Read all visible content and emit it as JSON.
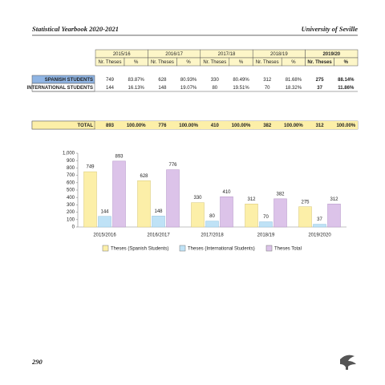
{
  "header": {
    "left": "Statistical Yearbook 2020-2021",
    "right": "University of Seville"
  },
  "table": {
    "years": [
      "2015/16",
      "2016/17",
      "2017/18",
      "2018/19",
      "2019/20"
    ],
    "subheaders": [
      "Nr. Theses",
      "%"
    ],
    "rows": [
      {
        "label": "SPANISH STUDENTS",
        "cells": [
          "749",
          "83.87%",
          "628",
          "80.93%",
          "330",
          "80.49%",
          "312",
          "81.68%",
          "275",
          "88.14%"
        ]
      },
      {
        "label": "INTERNATIONAL STUDENTS",
        "cells": [
          "144",
          "16.13%",
          "148",
          "19.07%",
          "80",
          "19.51%",
          "70",
          "18.32%",
          "37",
          "11.86%"
        ]
      }
    ],
    "total": {
      "label": "TOTAL",
      "cells": [
        "893",
        "100.00%",
        "776",
        "100.00%",
        "410",
        "100.00%",
        "382",
        "100.00%",
        "312",
        "100.00%"
      ]
    }
  },
  "chart_data": {
    "type": "bar",
    "categories": [
      "2015/2016",
      "2016/2017",
      "2017/2018",
      "2018/19",
      "2019/2020"
    ],
    "series": [
      {
        "name": "Theses (Spanish Students)",
        "color": "#fcefa8",
        "values": [
          749,
          628,
          330,
          312,
          275
        ]
      },
      {
        "name": "Theses (International Students)",
        "color": "#bfe2f6",
        "values": [
          144,
          148,
          80,
          70,
          37
        ]
      },
      {
        "name": "Theses Total",
        "color": "#dcc3e9",
        "values": [
          893,
          776,
          410,
          382,
          312
        ]
      }
    ],
    "ylim": [
      0,
      1000
    ],
    "yticks": [
      0,
      100,
      200,
      300,
      400,
      500,
      600,
      700,
      800,
      900,
      {
        "value": 1000,
        "label": "1,000"
      }
    ],
    "legend": "bottom"
  },
  "footer": {
    "page": "290"
  }
}
